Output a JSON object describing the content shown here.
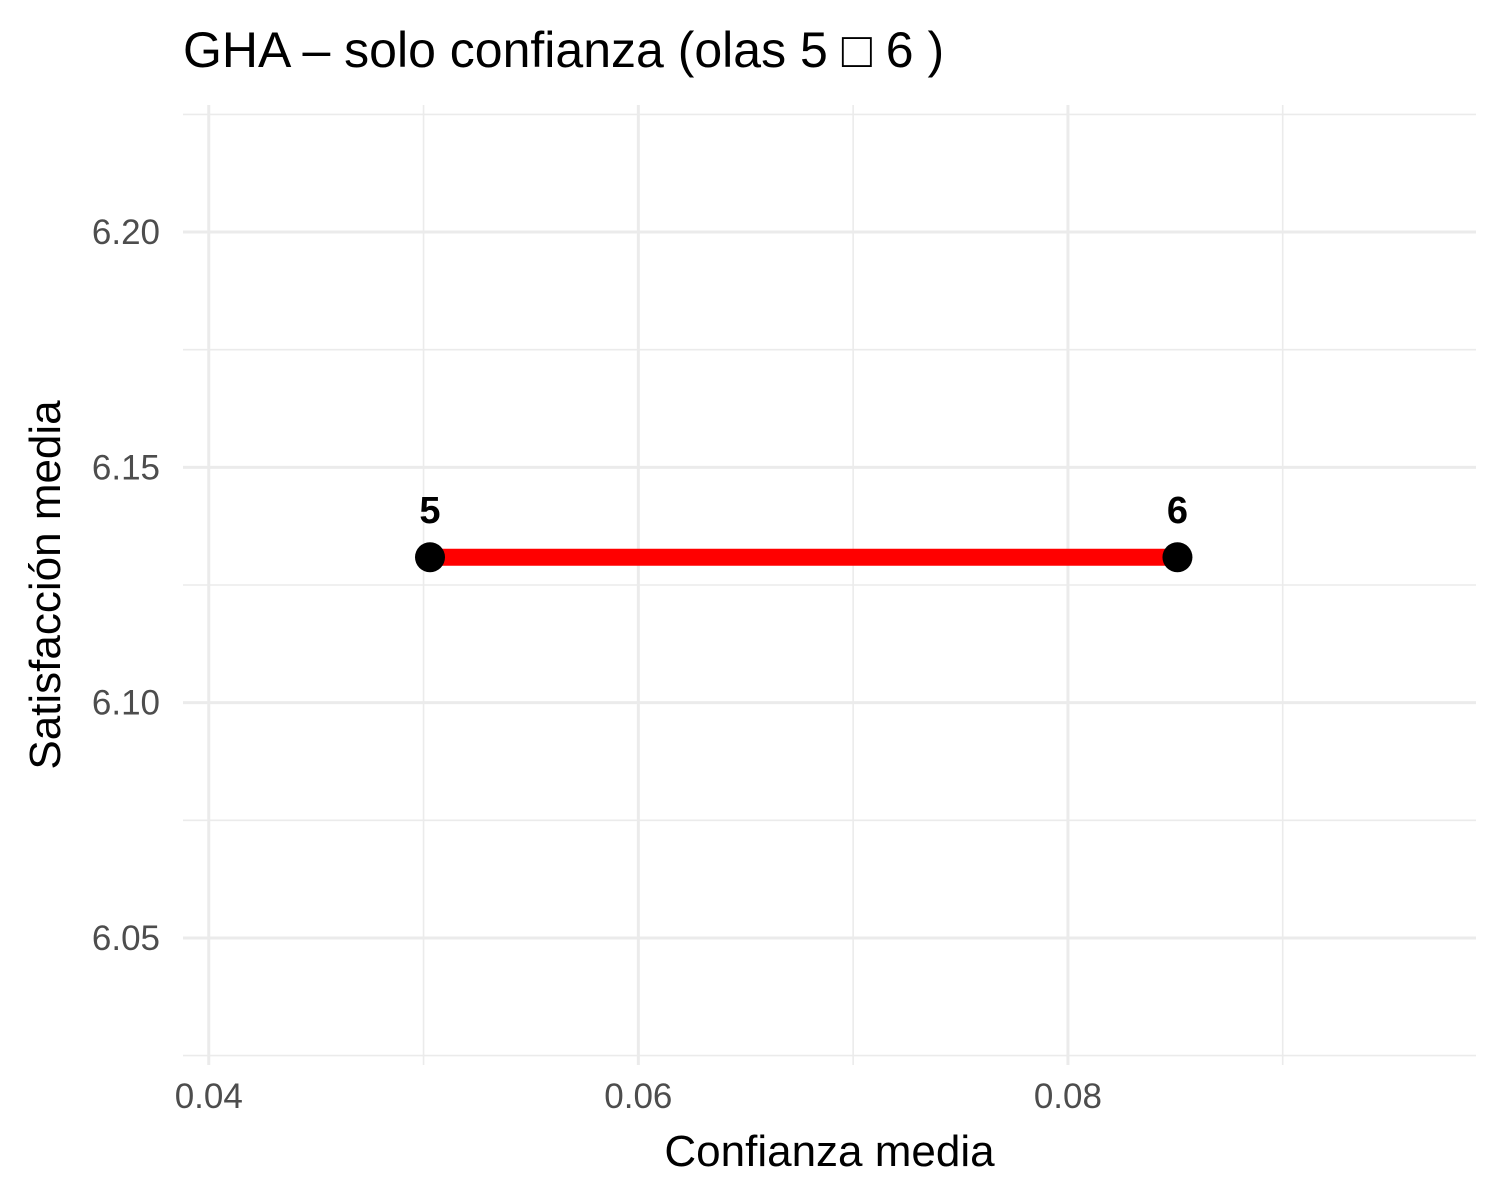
{
  "chart_data": {
    "type": "line",
    "title": "GHA – solo confianza (olas 5 □ 6 )",
    "xlabel": "Confianza media",
    "ylabel": "Satisfacción media",
    "xlim": [
      0.0388,
      0.099
    ],
    "ylim": [
      6.023,
      6.227
    ],
    "x_ticks": [
      0.04,
      0.06,
      0.08
    ],
    "x_tick_labels": [
      "0.04",
      "0.06",
      "0.08"
    ],
    "x_minor_ticks": [
      0.05,
      0.07,
      0.09
    ],
    "y_ticks": [
      6.05,
      6.1,
      6.15,
      6.2
    ],
    "y_tick_labels": [
      "6.05",
      "6.10",
      "6.15",
      "6.20"
    ],
    "y_minor_ticks": [
      6.025,
      6.075,
      6.125,
      6.175,
      6.225
    ],
    "grid": true,
    "series": [
      {
        "color": "#ff0000",
        "points": [
          {
            "x": 0.0503,
            "y": 6.1309,
            "label": "5"
          },
          {
            "x": 0.0851,
            "y": 6.1309,
            "label": "6"
          }
        ]
      }
    ],
    "point_color": "#000000"
  }
}
